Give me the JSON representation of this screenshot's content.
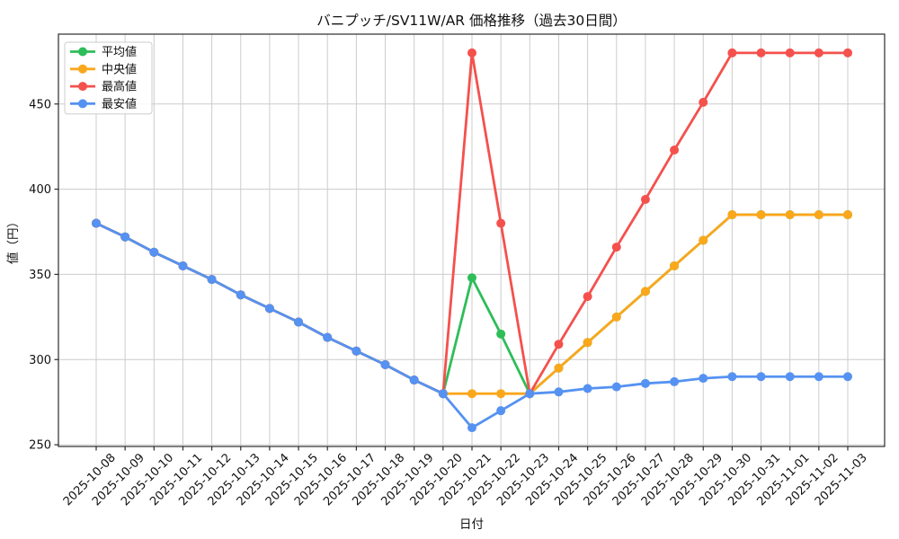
{
  "chart_data": {
    "type": "line",
    "title": "バニプッチ/SV11W/AR 価格推移（過去30日間）",
    "xlabel": "日付",
    "ylabel": "値（円）",
    "x": [
      "2025-10-08",
      "2025-10-09",
      "2025-10-10",
      "2025-10-11",
      "2025-10-12",
      "2025-10-13",
      "2025-10-14",
      "2025-10-15",
      "2025-10-16",
      "2025-10-17",
      "2025-10-18",
      "2025-10-19",
      "2025-10-20",
      "2025-10-21",
      "2025-10-22",
      "2025-10-23",
      "2025-10-24",
      "2025-10-25",
      "2025-10-26",
      "2025-10-27",
      "2025-10-28",
      "2025-10-29",
      "2025-10-30",
      "2025-10-31",
      "2025-11-01",
      "2025-11-02",
      "2025-11-03"
    ],
    "series": [
      {
        "id": "average",
        "name": "平均値",
        "color": "#2ebd59",
        "values": [
          380,
          372,
          363,
          355,
          347,
          338,
          330,
          322,
          313,
          305,
          297,
          288,
          280,
          348,
          315,
          280,
          295,
          310,
          325,
          340,
          355,
          370,
          385,
          385,
          385,
          385,
          385
        ]
      },
      {
        "id": "median",
        "name": "中央値",
        "color": "#fba71c",
        "values": [
          380,
          372,
          363,
          355,
          347,
          338,
          330,
          322,
          313,
          305,
          297,
          288,
          280,
          280,
          280,
          280,
          295,
          310,
          325,
          340,
          355,
          370,
          385,
          385,
          385,
          385,
          385
        ]
      },
      {
        "id": "max",
        "name": "最高値",
        "color": "#f4514d",
        "values": [
          380,
          372,
          363,
          355,
          347,
          338,
          330,
          322,
          313,
          305,
          297,
          288,
          280,
          480,
          380,
          280,
          309,
          337,
          366,
          394,
          423,
          451,
          480,
          480,
          480,
          480,
          480
        ]
      },
      {
        "id": "min",
        "name": "最安値",
        "color": "#5592f2",
        "values": [
          380,
          372,
          363,
          355,
          347,
          338,
          330,
          322,
          313,
          305,
          297,
          288,
          280,
          260,
          270,
          280,
          281,
          283,
          284,
          286,
          287,
          289,
          290,
          290,
          290,
          290,
          290
        ]
      }
    ],
    "yticks": [
      250,
      300,
      350,
      400,
      450
    ],
    "ylim": [
      249,
      491
    ],
    "grid": true,
    "legend_position": "upper-left",
    "colors": {
      "grid": "#cccccc",
      "frame": "#2b2b2b",
      "text": "#111111",
      "background": "#ffffff",
      "legend_border": "#cccccc",
      "legend_background": "#ffffff"
    }
  }
}
